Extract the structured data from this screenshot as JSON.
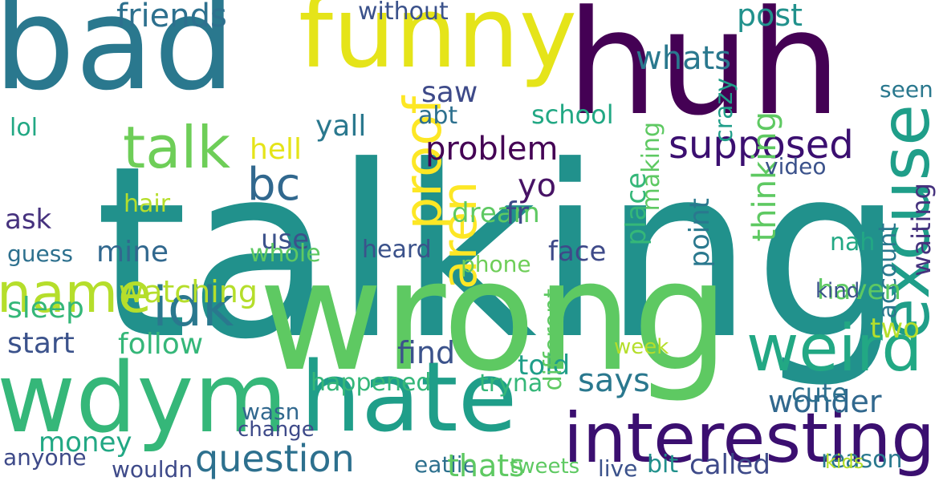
{
  "cloud": {
    "words": [
      {
        "text": "talking",
        "color": "#21918c"
      },
      {
        "text": "wrong",
        "color": "#5ec962"
      },
      {
        "text": "huh",
        "color": "#440154"
      },
      {
        "text": "bad",
        "color": "#2a788e"
      },
      {
        "text": "funny",
        "color": "#e5e419"
      },
      {
        "text": "hate",
        "color": "#1f9e89"
      },
      {
        "text": "wdym",
        "color": "#35b779"
      },
      {
        "text": "interesting",
        "color": "#3b0f70"
      },
      {
        "text": "weird",
        "color": "#22a884"
      },
      {
        "text": "excuse",
        "color": "#1f9e89"
      },
      {
        "text": "supposed",
        "color": "#3b0f70"
      },
      {
        "text": "talk",
        "color": "#6ece58"
      },
      {
        "text": "name",
        "color": "#b5de2b"
      },
      {
        "text": "idk",
        "color": "#2a788e"
      },
      {
        "text": "proof",
        "color": "#fde725"
      },
      {
        "text": "question",
        "color": "#2d708e"
      },
      {
        "text": "wonder",
        "color": "#31688e"
      },
      {
        "text": "problem",
        "color": "#440154"
      },
      {
        "text": "find",
        "color": "#3b528b"
      },
      {
        "text": "says",
        "color": "#2a788e"
      },
      {
        "text": "bc",
        "color": "#31688e"
      },
      {
        "text": "yo",
        "color": "#471365"
      },
      {
        "text": "happened",
        "color": "#35b779"
      },
      {
        "text": "friends",
        "color": "#2d708e"
      },
      {
        "text": "whats",
        "color": "#2a788e"
      },
      {
        "text": "post",
        "color": "#21918c"
      },
      {
        "text": "sleep",
        "color": "#35b779"
      },
      {
        "text": "money",
        "color": "#22a884"
      },
      {
        "text": "anyone",
        "color": "#3e4a89"
      },
      {
        "text": "follow",
        "color": "#35b779"
      },
      {
        "text": "start",
        "color": "#3b528b"
      },
      {
        "text": "mine",
        "color": "#31688e"
      },
      {
        "text": "use",
        "color": "#3b528b"
      },
      {
        "text": "whole",
        "color": "#5ec962"
      },
      {
        "text": "heard",
        "color": "#3b528b"
      },
      {
        "text": "face",
        "color": "#3e4a89"
      },
      {
        "text": "point",
        "color": "#2a788e"
      },
      {
        "text": "two",
        "color": "#b5de2b"
      },
      {
        "text": "reason",
        "color": "#2a788e"
      },
      {
        "text": "tryna",
        "color": "#35b779"
      },
      {
        "text": "kids",
        "color": "#b5de2b"
      },
      {
        "text": "called",
        "color": "#3e4a89"
      },
      {
        "text": "tweets",
        "color": "#5ec962"
      },
      {
        "text": "watching",
        "color": "#b5de2b"
      },
      {
        "text": "told",
        "color": "#1f9e89"
      },
      {
        "text": "lie",
        "color": "#2d708e"
      },
      {
        "text": "eat",
        "color": "#2d708e"
      },
      {
        "text": "guess",
        "color": "#2d708e"
      },
      {
        "text": "ask",
        "color": "#46327e"
      },
      {
        "text": "hair",
        "color": "#b5de2b"
      },
      {
        "text": "lol",
        "color": "#22a884"
      },
      {
        "text": "hell",
        "color": "#e5e419"
      },
      {
        "text": "saw",
        "color": "#3e4a89"
      },
      {
        "text": "abt",
        "color": "#2d708e"
      },
      {
        "text": "yall",
        "color": "#2a788e"
      },
      {
        "text": "aren",
        "color": "#fde725"
      },
      {
        "text": "making",
        "color": "#5ec962"
      },
      {
        "text": "thinking",
        "color": "#5ec962"
      },
      {
        "text": "account",
        "color": "#2a788e"
      },
      {
        "text": "waiting",
        "color": "#46327e"
      },
      {
        "text": "crazy",
        "color": "#1f9e89"
      },
      {
        "text": "dream",
        "color": "#5ec962"
      },
      {
        "text": "phone",
        "color": "#6ece58"
      },
      {
        "text": "place",
        "color": "#35b779"
      },
      {
        "text": "school",
        "color": "#22a884"
      },
      {
        "text": "nah",
        "color": "#22a884"
      },
      {
        "text": "seen",
        "color": "#2a788e"
      },
      {
        "text": "cute",
        "color": "#2d708e"
      },
      {
        "text": "wasn",
        "color": "#31688e"
      },
      {
        "text": "different",
        "color": "#5ec962"
      },
      {
        "text": "week",
        "color": "#b5de2b"
      },
      {
        "text": "haven",
        "color": "#5ec962"
      },
      {
        "text": "fr",
        "color": "#3e4a89"
      },
      {
        "text": "without",
        "color": "#3b528b"
      },
      {
        "text": "kind",
        "color": "#3b528b"
      },
      {
        "text": "thats",
        "color": "#5ec962"
      },
      {
        "text": "live",
        "color": "#3b528b"
      },
      {
        "text": "bit",
        "color": "#21918c"
      },
      {
        "text": "change",
        "color": "#3e4a89"
      },
      {
        "text": "wouldn",
        "color": "#3e4a89"
      },
      {
        "text": "video",
        "color": "#3b528b"
      }
    ]
  }
}
